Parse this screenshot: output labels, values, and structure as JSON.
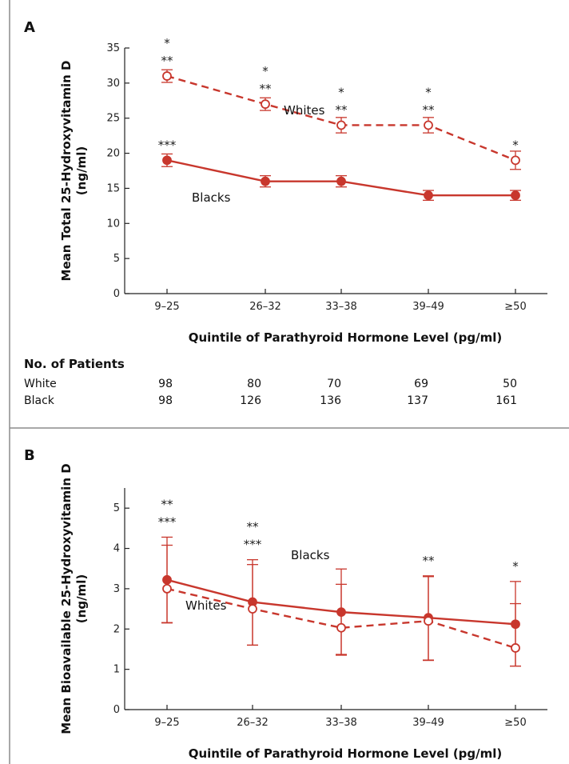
{
  "chart_data": [
    {
      "type": "line",
      "panel": "A",
      "categories": [
        "9–25",
        "26–32",
        "33–38",
        "39–49",
        "≥50"
      ],
      "ylabel": "Mean Total 25-Hydroxyvitamin D\n(ng/ml)",
      "xlabel": "Quintile of Parathyroid Hormone Level (pg/ml)",
      "ylim": [
        0,
        35
      ],
      "yticks": [
        0,
        5,
        10,
        15,
        20,
        25,
        30,
        35
      ],
      "series": [
        {
          "name": "Whites",
          "style": "dashed",
          "marker": "open-circle",
          "values": [
            31,
            27,
            24,
            24,
            19
          ],
          "err": [
            0.9,
            0.9,
            1.1,
            1.1,
            1.3
          ]
        },
        {
          "name": "Blacks",
          "style": "solid",
          "marker": "filled-circle",
          "values": [
            19,
            16,
            16,
            14,
            14
          ],
          "err": [
            0.9,
            0.8,
            0.8,
            0.7,
            0.7
          ]
        }
      ],
      "annotations": [
        {
          "category": 0,
          "value": 31,
          "lines": [
            "*",
            "**"
          ]
        },
        {
          "category": 1,
          "value": 27,
          "lines": [
            "*",
            "**"
          ]
        },
        {
          "category": 2,
          "value": 24,
          "lines": [
            "*",
            "**"
          ]
        },
        {
          "category": 3,
          "value": 24,
          "lines": [
            "*",
            "**"
          ]
        },
        {
          "category": 4,
          "value": 19,
          "lines": [
            "*"
          ]
        },
        {
          "category": 0,
          "value": 19,
          "lines": [
            "***"
          ]
        }
      ],
      "table": {
        "title": "No. of Patients",
        "rows": [
          {
            "label": "White",
            "values": [
              "98",
              "80",
              "70",
              "69",
              "50"
            ]
          },
          {
            "label": "Black",
            "values": [
              "98",
              "126",
              "136",
              "137",
              "161"
            ]
          }
        ]
      },
      "grid": false
    },
    {
      "type": "line",
      "panel": "B",
      "categories": [
        "9–25",
        "26–32",
        "33–38",
        "39–49",
        "≥50"
      ],
      "ylabel": "Mean Bioavailable 25-Hydroxyvitamin D\n(ng/ml)",
      "xlabel": "Quintile of Parathyroid Hormone Level (pg/ml)",
      "ylim": [
        0,
        5.5
      ],
      "yticks": [
        0,
        1,
        2,
        3,
        4,
        5
      ],
      "series": [
        {
          "name": "Blacks",
          "style": "solid",
          "marker": "filled-circle",
          "values": [
            3.22,
            2.67,
            2.42,
            2.28,
            2.12
          ],
          "err_low": [
            1.07,
            1.07,
            1.05,
            1.05,
            1.04
          ],
          "err_high": [
            1.06,
            1.05,
            1.07,
            1.04,
            1.06
          ]
        },
        {
          "name": "Whites",
          "style": "dashed",
          "marker": "open-circle",
          "values": [
            3.0,
            2.5,
            2.03,
            2.2,
            1.53
          ],
          "err_low": [
            0.84,
            0.9,
            0.68,
            0.98,
            0.45
          ],
          "err_high": [
            1.08,
            1.1,
            1.08,
            1.1,
            1.1
          ]
        }
      ],
      "annotations": [
        {
          "category": 0,
          "value": 4.28,
          "lines": [
            "**",
            "***"
          ]
        },
        {
          "category": 1,
          "value": 3.72,
          "lines": [
            "**",
            "***"
          ]
        },
        {
          "category": 3,
          "value": 3.32,
          "lines": [
            "**"
          ]
        },
        {
          "category": 4,
          "value": 3.18,
          "lines": [
            "*"
          ]
        }
      ],
      "grid": false
    }
  ],
  "colors": {
    "series": "#c8372d",
    "frame": "#8c8c8c",
    "text": "#111111"
  }
}
